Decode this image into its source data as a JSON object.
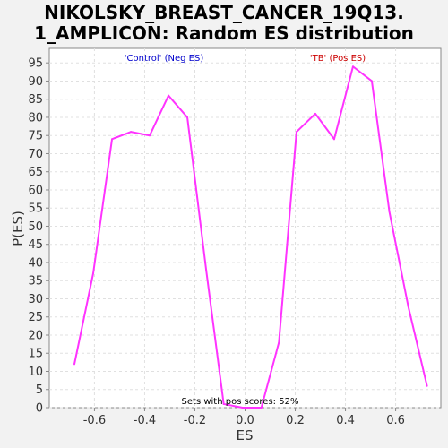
{
  "chart_data": {
    "type": "line",
    "title_lines": [
      "NIKOLSKY_BREAST_CANCER_19Q13.",
      "1_AMPLICON: Random ES distribution"
    ],
    "xlabel": "ES",
    "ylabel": "P(ES)",
    "xlim": [
      -0.78,
      0.78
    ],
    "ylim": [
      0,
      99
    ],
    "x_ticks": [
      -0.6,
      -0.4,
      -0.2,
      0.0,
      0.2,
      0.4,
      0.6
    ],
    "x_tick_labels": [
      "-0.6",
      "-0.4",
      "-0.2",
      "0.0",
      "0.2",
      "0.4",
      "0.6"
    ],
    "y_ticks": [
      0,
      5,
      10,
      15,
      20,
      25,
      30,
      35,
      40,
      45,
      50,
      55,
      60,
      65,
      70,
      75,
      80,
      85,
      90,
      95
    ],
    "y_tick_labels": [
      "0",
      "5",
      "10",
      "15",
      "20",
      "25",
      "30",
      "35",
      "40",
      "45",
      "50",
      "55",
      "60",
      "65",
      "70",
      "75",
      "80",
      "85",
      "90",
      "95"
    ],
    "grid": true,
    "series": [
      {
        "color": "#ff33ff",
        "x": [
          -0.68,
          -0.605,
          -0.53,
          -0.455,
          -0.38,
          -0.305,
          -0.23,
          -0.155,
          -0.085,
          -0.01,
          0.065,
          0.135,
          0.205,
          0.28,
          0.355,
          0.43,
          0.505,
          0.575,
          0.65,
          0.725
        ],
        "y": [
          12,
          37,
          74,
          76,
          75,
          86,
          80,
          38,
          1,
          0,
          0,
          18,
          76,
          81,
          74,
          94,
          90,
          54,
          28,
          6
        ]
      }
    ],
    "annotations": [
      {
        "text": "'Control' (Neg ES)",
        "color": "#0000cc"
      },
      {
        "text": "'TB' (Pos ES)",
        "color": "#cc0000"
      },
      {
        "text": "Sets with pos scores: 52%",
        "color": "#000000"
      }
    ]
  }
}
